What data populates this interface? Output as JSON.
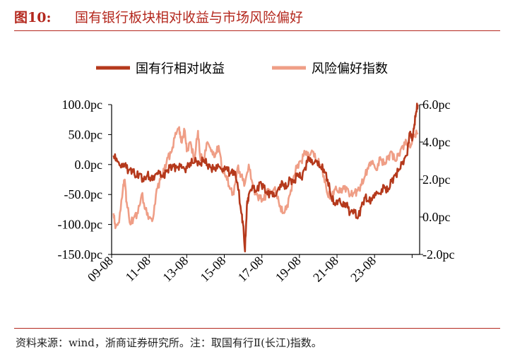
{
  "figure": {
    "number": "图10:",
    "title": "国有银行板块相对收益与市场风险偏好"
  },
  "footnote": "资料来源：wind，浙商证券研究所。注：取国有行Ⅱ(长江)指数。",
  "chart_data": {
    "type": "line",
    "x_tick_labels": [
      "09-08",
      "11-08",
      "13-08",
      "15-08",
      "17-08",
      "19-08",
      "21-08",
      "23-08"
    ],
    "x_range": [
      2008.5,
      2024.9
    ],
    "y_left": {
      "ticks": [
        "100.0pc",
        "50.0pc",
        "0.0pc",
        "-50.0pc",
        "-100.0pc",
        "-150.0pc"
      ],
      "range": [
        -150,
        100
      ]
    },
    "y_right": {
      "ticks": [
        "6.0pc",
        "4.0pc",
        "2.0pc",
        "0.0pc",
        "-2.0pc"
      ],
      "range": [
        -2,
        6
      ]
    },
    "legend_position": "top",
    "grid": false,
    "series": [
      {
        "name": "国有行相对收益",
        "axis": "left",
        "color": "#b5391c",
        "points": [
          [
            2008.6,
            15
          ],
          [
            2008.8,
            5
          ],
          [
            2009.0,
            -5
          ],
          [
            2009.2,
            0
          ],
          [
            2009.4,
            -10
          ],
          [
            2009.6,
            -8
          ],
          [
            2009.8,
            -20
          ],
          [
            2010.0,
            -15
          ],
          [
            2010.2,
            -28
          ],
          [
            2010.4,
            -18
          ],
          [
            2010.6,
            -25
          ],
          [
            2010.8,
            -18
          ],
          [
            2011.0,
            -10
          ],
          [
            2011.2,
            -20
          ],
          [
            2011.4,
            -12
          ],
          [
            2011.6,
            -5
          ],
          [
            2011.8,
            -3
          ],
          [
            2012.0,
            -5
          ],
          [
            2012.2,
            0
          ],
          [
            2012.4,
            -8
          ],
          [
            2012.6,
            0
          ],
          [
            2012.8,
            3
          ],
          [
            2013.0,
            5
          ],
          [
            2013.2,
            0
          ],
          [
            2013.4,
            8
          ],
          [
            2013.6,
            0
          ],
          [
            2013.8,
            -5
          ],
          [
            2014.0,
            -8
          ],
          [
            2014.2,
            -3
          ],
          [
            2014.4,
            -12
          ],
          [
            2014.6,
            -5
          ],
          [
            2014.8,
            -15
          ],
          [
            2015.0,
            -10
          ],
          [
            2015.2,
            -30
          ],
          [
            2015.4,
            -80
          ],
          [
            2015.5,
            -100
          ],
          [
            2015.6,
            -145
          ],
          [
            2015.7,
            -70
          ],
          [
            2015.8,
            -50
          ],
          [
            2016.0,
            -35
          ],
          [
            2016.2,
            -45
          ],
          [
            2016.4,
            -30
          ],
          [
            2016.6,
            -38
          ],
          [
            2016.8,
            -50
          ],
          [
            2017.0,
            -45
          ],
          [
            2017.2,
            -52
          ],
          [
            2017.4,
            -38
          ],
          [
            2017.6,
            -30
          ],
          [
            2017.8,
            -40
          ],
          [
            2018.0,
            -25
          ],
          [
            2018.2,
            -30
          ],
          [
            2018.4,
            -15
          ],
          [
            2018.6,
            -22
          ],
          [
            2018.8,
            -5
          ],
          [
            2019.0,
            12
          ],
          [
            2019.2,
            0
          ],
          [
            2019.4,
            5
          ],
          [
            2019.6,
            -5
          ],
          [
            2019.8,
            -8
          ],
          [
            2020.0,
            -25
          ],
          [
            2020.2,
            -55
          ],
          [
            2020.4,
            -68
          ],
          [
            2020.6,
            -60
          ],
          [
            2020.8,
            -70
          ],
          [
            2021.0,
            -65
          ],
          [
            2021.2,
            -80
          ],
          [
            2021.4,
            -75
          ],
          [
            2021.6,
            -90
          ],
          [
            2021.8,
            -70
          ],
          [
            2022.0,
            -55
          ],
          [
            2022.2,
            -62
          ],
          [
            2022.4,
            -55
          ],
          [
            2022.6,
            -45
          ],
          [
            2022.8,
            -48
          ],
          [
            2023.0,
            -35
          ],
          [
            2023.2,
            -45
          ],
          [
            2023.4,
            -28
          ],
          [
            2023.6,
            -18
          ],
          [
            2023.8,
            -8
          ],
          [
            2024.0,
            5
          ],
          [
            2024.2,
            15
          ],
          [
            2024.4,
            55
          ],
          [
            2024.5,
            40
          ],
          [
            2024.6,
            60
          ],
          [
            2024.7,
            85
          ],
          [
            2024.8,
            100
          ]
        ]
      },
      {
        "name": "风险偏好指数",
        "axis": "right",
        "color": "#ef9e86",
        "points": [
          [
            2008.6,
            0.2
          ],
          [
            2008.7,
            -0.6
          ],
          [
            2008.9,
            -0.3
          ],
          [
            2009.1,
            1.5
          ],
          [
            2009.2,
            2.0
          ],
          [
            2009.3,
            0.8
          ],
          [
            2009.5,
            -0.4
          ],
          [
            2009.7,
            0.0
          ],
          [
            2009.9,
            0.2
          ],
          [
            2010.1,
            1.2
          ],
          [
            2010.3,
            0.4
          ],
          [
            2010.5,
            0.0
          ],
          [
            2010.7,
            -0.1
          ],
          [
            2010.9,
            1.5
          ],
          [
            2011.1,
            2.0
          ],
          [
            2011.3,
            2.5
          ],
          [
            2011.5,
            3.2
          ],
          [
            2011.7,
            3.5
          ],
          [
            2011.9,
            4.5
          ],
          [
            2012.1,
            4.8
          ],
          [
            2012.2,
            4.0
          ],
          [
            2012.4,
            4.6
          ],
          [
            2012.5,
            3.5
          ],
          [
            2012.7,
            4.0
          ],
          [
            2012.9,
            3.0
          ],
          [
            2013.1,
            4.6
          ],
          [
            2013.2,
            3.3
          ],
          [
            2013.4,
            3.0
          ],
          [
            2013.6,
            4.0
          ],
          [
            2013.8,
            3.5
          ],
          [
            2014.0,
            3.2
          ],
          [
            2014.2,
            3.8
          ],
          [
            2014.4,
            2.5
          ],
          [
            2014.6,
            2.2
          ],
          [
            2014.8,
            1.5
          ],
          [
            2015.0,
            1.2
          ],
          [
            2015.2,
            2.6
          ],
          [
            2015.4,
            2.2
          ],
          [
            2015.6,
            1.8
          ],
          [
            2015.8,
            2.8
          ],
          [
            2016.0,
            1.8
          ],
          [
            2016.2,
            1.2
          ],
          [
            2016.4,
            1.0
          ],
          [
            2016.6,
            0.9
          ],
          [
            2016.8,
            1.5
          ],
          [
            2017.0,
            1.3
          ],
          [
            2017.2,
            1.6
          ],
          [
            2017.4,
            0.8
          ],
          [
            2017.6,
            0.2
          ],
          [
            2017.8,
            0.4
          ],
          [
            2018.0,
            1.2
          ],
          [
            2018.2,
            2.2
          ],
          [
            2018.4,
            2.8
          ],
          [
            2018.6,
            3.0
          ],
          [
            2018.8,
            3.5
          ],
          [
            2019.0,
            3.2
          ],
          [
            2019.2,
            3.5
          ],
          [
            2019.4,
            3.0
          ],
          [
            2019.6,
            2.8
          ],
          [
            2019.8,
            2.2
          ],
          [
            2020.0,
            1.2
          ],
          [
            2020.2,
            1.0
          ],
          [
            2020.4,
            1.5
          ],
          [
            2020.6,
            1.3
          ],
          [
            2020.8,
            1.5
          ],
          [
            2021.0,
            1.6
          ],
          [
            2021.2,
            1.2
          ],
          [
            2021.4,
            1.3
          ],
          [
            2021.6,
            1.4
          ],
          [
            2021.8,
            1.7
          ],
          [
            2022.0,
            2.2
          ],
          [
            2022.2,
            2.8
          ],
          [
            2022.4,
            3.0
          ],
          [
            2022.6,
            2.5
          ],
          [
            2022.8,
            3.2
          ],
          [
            2023.0,
            2.8
          ],
          [
            2023.2,
            3.1
          ],
          [
            2023.4,
            3.5
          ],
          [
            2023.6,
            3.0
          ],
          [
            2023.8,
            3.4
          ],
          [
            2024.0,
            3.8
          ],
          [
            2024.2,
            4.0
          ],
          [
            2024.4,
            3.7
          ],
          [
            2024.6,
            4.3
          ],
          [
            2024.8,
            4.5
          ]
        ]
      }
    ]
  }
}
